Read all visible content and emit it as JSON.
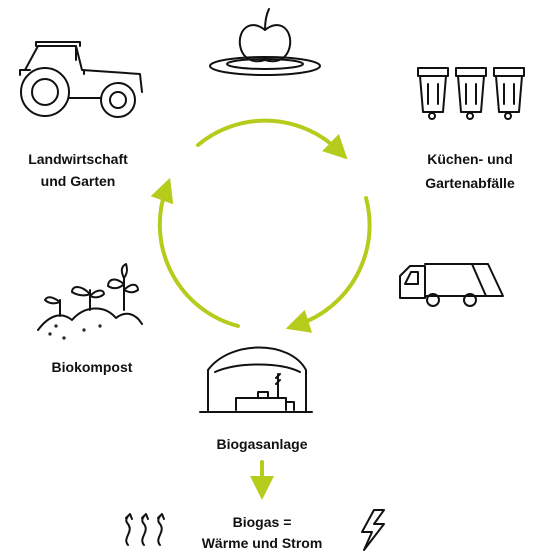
{
  "nodes": [
    {
      "label": [
        "Landwirtschaft",
        "und Garten"
      ]
    },
    {
      "label": [
        "Küchen- und",
        "Gartenabfälle"
      ]
    },
    {
      "label": [
        "Biokompost"
      ]
    },
    {
      "label": [
        "Biogasanlage"
      ]
    },
    {
      "label": [
        "Biogas =",
        "Wärme und Strom"
      ]
    }
  ]
}
